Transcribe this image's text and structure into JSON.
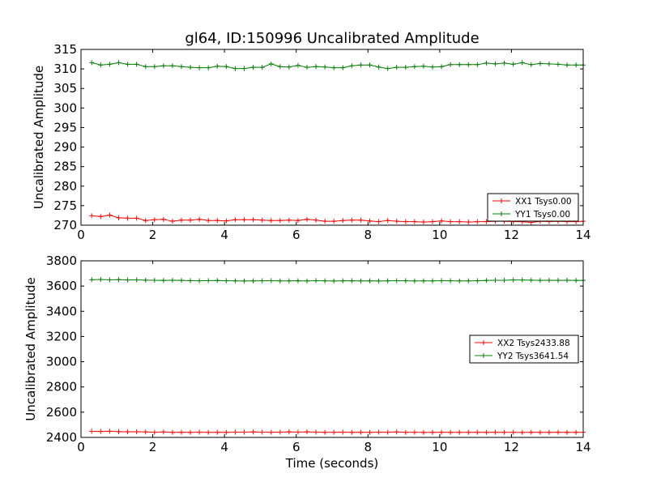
{
  "figure": {
    "title": "gl64, ID:150996 Uncalibrated Amplitude"
  },
  "chart_data": [
    {
      "type": "line",
      "title": "gl64, ID:150996 Uncalibrated Amplitude",
      "xlabel": "",
      "ylabel": "Uncalibrated Amplitude",
      "xlim": [
        0,
        14
      ],
      "ylim": [
        270,
        315
      ],
      "xticks": [
        0,
        2,
        4,
        6,
        8,
        10,
        12,
        14
      ],
      "yticks": [
        270,
        275,
        280,
        285,
        290,
        295,
        300,
        305,
        310,
        315
      ],
      "grid": false,
      "legend_position": "lower-right",
      "x": [
        0.3,
        0.55,
        0.8,
        1.05,
        1.3,
        1.55,
        1.8,
        2.05,
        2.3,
        2.55,
        2.8,
        3.05,
        3.3,
        3.55,
        3.8,
        4.05,
        4.3,
        4.55,
        4.8,
        5.05,
        5.3,
        5.55,
        5.8,
        6.05,
        6.3,
        6.55,
        6.8,
        7.05,
        7.3,
        7.55,
        7.8,
        8.05,
        8.3,
        8.55,
        8.8,
        9.05,
        9.3,
        9.55,
        9.8,
        10.05,
        10.3,
        10.55,
        10.8,
        11.05,
        11.3,
        11.55,
        11.8,
        12.05,
        12.3,
        12.55,
        12.8,
        13.05,
        13.3,
        13.55,
        13.8,
        14.0
      ],
      "series": [
        {
          "name": "XX1 Tsys0.00",
          "color": "#ff0000",
          "values": [
            272.4,
            272.2,
            272.6,
            271.9,
            271.8,
            271.8,
            271.2,
            271.4,
            271.5,
            271.0,
            271.3,
            271.3,
            271.5,
            271.2,
            271.2,
            271.1,
            271.4,
            271.4,
            271.4,
            271.3,
            271.2,
            271.2,
            271.3,
            271.2,
            271.5,
            271.3,
            271.0,
            271.0,
            271.2,
            271.3,
            271.3,
            271.1,
            270.9,
            271.2,
            271.0,
            270.9,
            270.9,
            270.8,
            270.9,
            271.1,
            270.9,
            270.9,
            270.8,
            270.9,
            270.9,
            271.0,
            271.0,
            270.9,
            270.9,
            270.7,
            271.0,
            270.9,
            271.0,
            270.9,
            270.9,
            271.0
          ]
        },
        {
          "name": "YY1 Tsys0.00",
          "color": "#008000",
          "values": [
            311.6,
            311.0,
            311.2,
            311.6,
            311.2,
            311.2,
            310.6,
            310.6,
            310.8,
            310.8,
            310.6,
            310.4,
            310.3,
            310.3,
            310.7,
            310.6,
            310.1,
            310.1,
            310.4,
            310.4,
            311.3,
            310.6,
            310.5,
            310.9,
            310.4,
            310.6,
            310.5,
            310.3,
            310.3,
            310.8,
            311.0,
            311.0,
            310.5,
            310.1,
            310.4,
            310.4,
            310.6,
            310.7,
            310.5,
            310.6,
            311.1,
            311.1,
            311.1,
            311.1,
            311.5,
            311.3,
            311.5,
            311.2,
            311.6,
            311.1,
            311.4,
            311.3,
            311.2,
            311.0,
            311.0,
            311.0
          ]
        }
      ]
    },
    {
      "type": "line",
      "title": "",
      "xlabel": "Time (seconds)",
      "ylabel": "Uncalibrated Amplitude",
      "xlim": [
        0,
        14
      ],
      "ylim": [
        2400,
        3800
      ],
      "xticks": [
        0,
        2,
        4,
        6,
        8,
        10,
        12,
        14
      ],
      "yticks": [
        2400,
        2600,
        2800,
        3000,
        3200,
        3400,
        3600,
        3800
      ],
      "grid": false,
      "legend_position": "center-right",
      "x": [
        0.3,
        0.55,
        0.8,
        1.05,
        1.3,
        1.55,
        1.8,
        2.05,
        2.3,
        2.55,
        2.8,
        3.05,
        3.3,
        3.55,
        3.8,
        4.05,
        4.3,
        4.55,
        4.8,
        5.05,
        5.3,
        5.55,
        5.8,
        6.05,
        6.3,
        6.55,
        6.8,
        7.05,
        7.3,
        7.55,
        7.8,
        8.05,
        8.3,
        8.55,
        8.8,
        9.05,
        9.3,
        9.55,
        9.8,
        10.05,
        10.3,
        10.55,
        10.8,
        11.05,
        11.3,
        11.55,
        11.8,
        12.05,
        12.3,
        12.55,
        12.8,
        13.05,
        13.3,
        13.55,
        13.8,
        14.0
      ],
      "series": [
        {
          "name": "XX2 Tsys2433.88",
          "color": "#ff0000",
          "values": [
            2448,
            2447,
            2449,
            2446,
            2444,
            2445,
            2443,
            2441,
            2443,
            2440,
            2441,
            2440,
            2442,
            2440,
            2441,
            2440,
            2442,
            2442,
            2443,
            2442,
            2441,
            2442,
            2443,
            2442,
            2444,
            2442,
            2440,
            2441,
            2442,
            2440,
            2441,
            2440,
            2442,
            2441,
            2443,
            2440,
            2441,
            2439,
            2440,
            2441,
            2440,
            2440,
            2440,
            2441,
            2440,
            2441,
            2440,
            2440,
            2439,
            2441,
            2440,
            2440,
            2441,
            2440,
            2440,
            2441
          ]
        },
        {
          "name": "YY2 Tsys3641.54",
          "color": "#008000",
          "values": [
            3650,
            3652,
            3649,
            3651,
            3648,
            3649,
            3647,
            3646,
            3644,
            3646,
            3645,
            3643,
            3642,
            3643,
            3644,
            3642,
            3641,
            3640,
            3641,
            3642,
            3643,
            3640,
            3641,
            3642,
            3640,
            3643,
            3641,
            3640,
            3641,
            3642,
            3640,
            3641,
            3640,
            3641,
            3643,
            3642,
            3640,
            3641,
            3641,
            3643,
            3642,
            3640,
            3641,
            3642,
            3644,
            3646,
            3646,
            3648,
            3648,
            3647,
            3645,
            3646,
            3645,
            3646,
            3644,
            3645
          ]
        }
      ]
    }
  ]
}
